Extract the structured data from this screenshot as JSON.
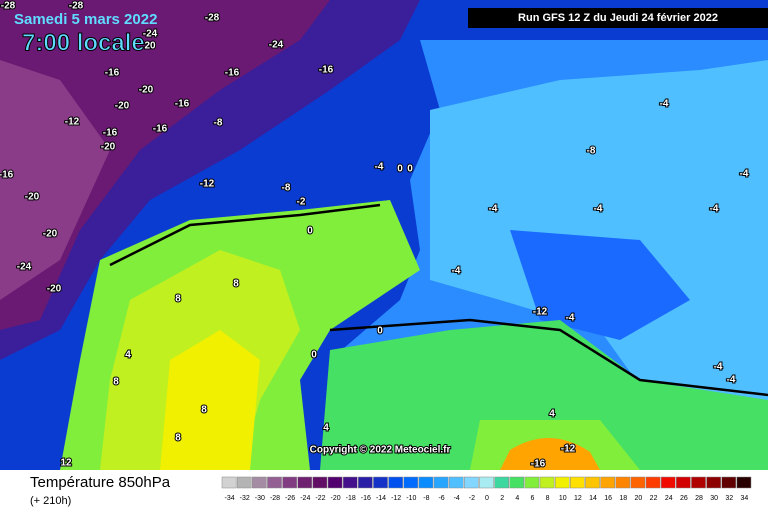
{
  "header": {
    "date": "Samedi 5 mars 2022",
    "time": "7:00 locale",
    "run": "Run GFS 12 Z du Jeudi 24 février 2022"
  },
  "copyright": "Copyright © 2022 Meteociel.fr",
  "footer": {
    "title": "Température 850hPa",
    "lead": "(+ 210h)"
  },
  "contour_labels": [
    "-28",
    "-28",
    "-28",
    "-24",
    "20",
    "-24",
    "-16",
    "-16",
    "-16",
    "-20",
    "-20",
    "-16",
    "-12",
    "-16",
    "-16",
    "-8",
    "-20",
    "-16",
    "-20",
    "-12",
    "-8",
    "-20",
    "-24",
    "-20",
    "8",
    "8",
    "4",
    "8",
    "8",
    "8",
    "12",
    "4",
    "4",
    "-12",
    "-16",
    "-4",
    "-8",
    "-4",
    "-4",
    "-4",
    "-4",
    "-4",
    "0",
    "0",
    "0",
    "-12",
    "-4",
    "-4",
    "-4",
    "-4",
    "0",
    "0",
    "-2"
  ],
  "legend": {
    "values": [
      -34,
      -32,
      -30,
      -28,
      -26,
      -24,
      -22,
      -20,
      -18,
      -16,
      -14,
      -12,
      -10,
      -8,
      -6,
      -4,
      -2,
      0,
      2,
      4,
      6,
      8,
      10,
      12,
      14,
      16,
      18,
      20,
      22,
      24,
      26,
      28,
      30,
      32,
      34
    ],
    "colors": [
      "#d2d2d2",
      "#b4b4b4",
      "#a48ca4",
      "#946094",
      "#823c82",
      "#702070",
      "#620e66",
      "#520070",
      "#44108c",
      "#2a1ea6",
      "#1432c8",
      "#0050f0",
      "#006cff",
      "#0a8cff",
      "#28a6ff",
      "#50bfff",
      "#82d6ff",
      "#a8ecf2",
      "#3cd8a0",
      "#46e064",
      "#82ee3c",
      "#c0f020",
      "#f0f000",
      "#ffe000",
      "#ffc400",
      "#ffa400",
      "#ff8400",
      "#ff6400",
      "#ff3c00",
      "#f00a00",
      "#d20000",
      "#b00000",
      "#8c0000",
      "#600000",
      "#280000"
    ]
  }
}
